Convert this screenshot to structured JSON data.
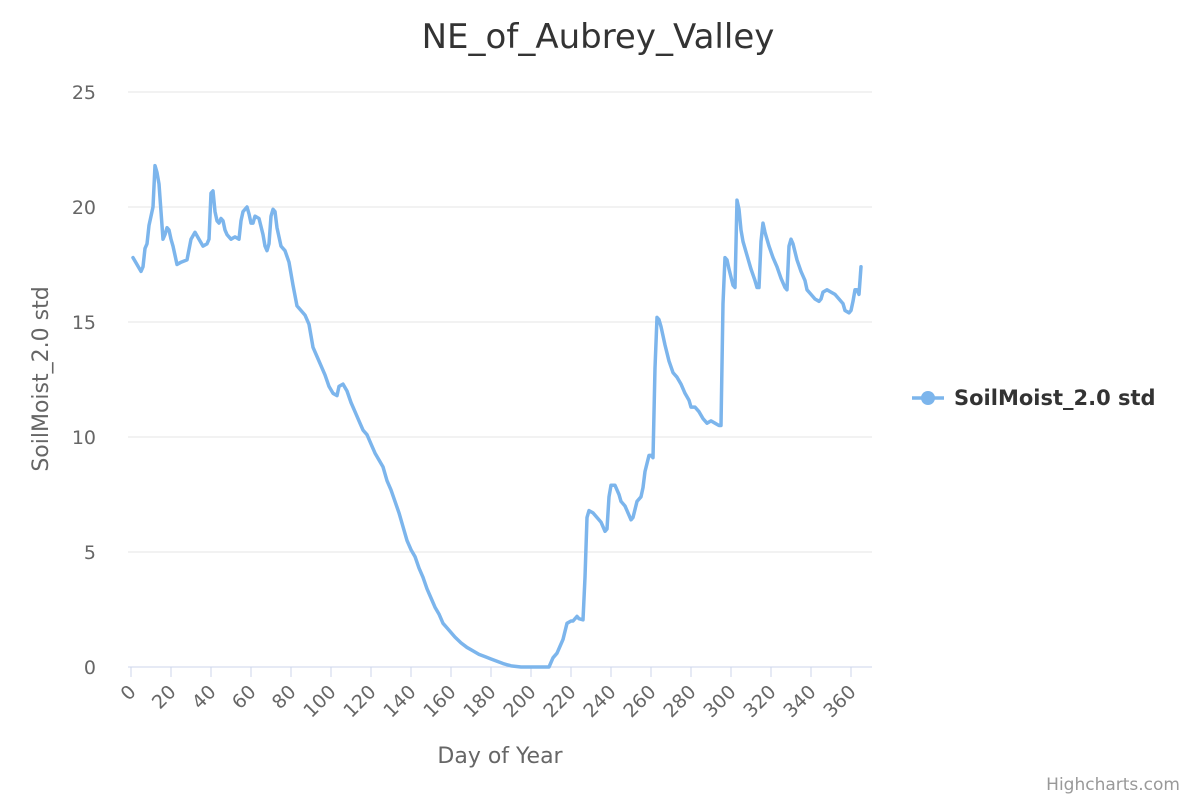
{
  "chart_data": {
    "type": "line",
    "title": "NE_of_Aubrey_Valley",
    "xlabel": "Day of Year",
    "ylabel": "SoilMoist_2.0 std",
    "xlim": [
      0,
      365
    ],
    "ylim": [
      0,
      25
    ],
    "x_ticks": [
      "0",
      "20",
      "40",
      "60",
      "80",
      "100",
      "120",
      "140",
      "160",
      "180",
      "200",
      "220",
      "240",
      "260",
      "280",
      "300",
      "320",
      "340",
      "360"
    ],
    "y_ticks": [
      "0",
      "5",
      "10",
      "15",
      "20",
      "25"
    ],
    "grid": true,
    "legend_position": "right",
    "credits": "Highcharts.com",
    "color": "#7cb5ec",
    "series": [
      {
        "name": "SoilMoist_2.0 std",
        "points": [
          [
            1,
            17.8
          ],
          [
            3,
            17.5
          ],
          [
            5,
            17.2
          ],
          [
            6,
            17.4
          ],
          [
            7,
            18.2
          ],
          [
            8,
            18.4
          ],
          [
            9,
            19.2
          ],
          [
            10,
            19.6
          ],
          [
            11,
            20.0
          ],
          [
            12,
            21.8
          ],
          [
            13,
            21.5
          ],
          [
            14,
            21.0
          ],
          [
            15,
            19.8
          ],
          [
            16,
            18.6
          ],
          [
            17,
            18.8
          ],
          [
            18,
            19.1
          ],
          [
            19,
            19.0
          ],
          [
            20,
            18.6
          ],
          [
            21,
            18.3
          ],
          [
            22,
            17.9
          ],
          [
            23,
            17.5
          ],
          [
            25,
            17.6
          ],
          [
            28,
            17.7
          ],
          [
            30,
            18.6
          ],
          [
            32,
            18.9
          ],
          [
            34,
            18.6
          ],
          [
            36,
            18.3
          ],
          [
            38,
            18.4
          ],
          [
            39,
            18.6
          ],
          [
            40,
            20.6
          ],
          [
            41,
            20.7
          ],
          [
            42,
            19.8
          ],
          [
            43,
            19.4
          ],
          [
            44,
            19.3
          ],
          [
            45,
            19.5
          ],
          [
            46,
            19.4
          ],
          [
            47,
            19.0
          ],
          [
            48,
            18.8
          ],
          [
            50,
            18.6
          ],
          [
            52,
            18.7
          ],
          [
            54,
            18.6
          ],
          [
            55,
            19.4
          ],
          [
            56,
            19.8
          ],
          [
            58,
            20.0
          ],
          [
            59,
            19.7
          ],
          [
            60,
            19.3
          ],
          [
            61,
            19.3
          ],
          [
            62,
            19.6
          ],
          [
            64,
            19.5
          ],
          [
            66,
            18.8
          ],
          [
            67,
            18.3
          ],
          [
            68,
            18.1
          ],
          [
            69,
            18.4
          ],
          [
            70,
            19.6
          ],
          [
            71,
            19.9
          ],
          [
            72,
            19.8
          ],
          [
            73,
            19.1
          ],
          [
            75,
            18.3
          ],
          [
            77,
            18.1
          ],
          [
            79,
            17.6
          ],
          [
            81,
            16.6
          ],
          [
            83,
            15.7
          ],
          [
            85,
            15.5
          ],
          [
            87,
            15.3
          ],
          [
            89,
            14.9
          ],
          [
            91,
            13.9
          ],
          [
            93,
            13.5
          ],
          [
            95,
            13.1
          ],
          [
            97,
            12.7
          ],
          [
            99,
            12.2
          ],
          [
            101,
            11.9
          ],
          [
            103,
            11.8
          ],
          [
            104,
            12.2
          ],
          [
            106,
            12.3
          ],
          [
            108,
            12.0
          ],
          [
            110,
            11.5
          ],
          [
            112,
            11.1
          ],
          [
            114,
            10.7
          ],
          [
            116,
            10.3
          ],
          [
            118,
            10.1
          ],
          [
            120,
            9.7
          ],
          [
            122,
            9.3
          ],
          [
            124,
            9.0
          ],
          [
            126,
            8.7
          ],
          [
            128,
            8.1
          ],
          [
            130,
            7.7
          ],
          [
            132,
            7.2
          ],
          [
            134,
            6.7
          ],
          [
            136,
            6.1
          ],
          [
            138,
            5.5
          ],
          [
            140,
            5.1
          ],
          [
            142,
            4.8
          ],
          [
            144,
            4.3
          ],
          [
            146,
            3.9
          ],
          [
            148,
            3.4
          ],
          [
            150,
            3.0
          ],
          [
            152,
            2.6
          ],
          [
            154,
            2.3
          ],
          [
            156,
            1.9
          ],
          [
            158,
            1.7
          ],
          [
            160,
            1.5
          ],
          [
            162,
            1.3
          ],
          [
            165,
            1.05
          ],
          [
            168,
            0.85
          ],
          [
            171,
            0.7
          ],
          [
            174,
            0.55
          ],
          [
            177,
            0.45
          ],
          [
            180,
            0.35
          ],
          [
            183,
            0.25
          ],
          [
            186,
            0.15
          ],
          [
            190,
            0.05
          ],
          [
            195,
            0.0
          ],
          [
            200,
            0.0
          ],
          [
            205,
            0.0
          ],
          [
            209,
            0.0
          ],
          [
            211,
            0.4
          ],
          [
            213,
            0.6
          ],
          [
            215,
            1.0
          ],
          [
            216,
            1.2
          ],
          [
            218,
            1.9
          ],
          [
            220,
            2.0
          ],
          [
            221,
            2.0
          ],
          [
            223,
            2.2
          ],
          [
            224,
            2.1
          ],
          [
            226,
            2.05
          ],
          [
            227,
            3.9
          ],
          [
            228,
            6.5
          ],
          [
            229,
            6.8
          ],
          [
            231,
            6.7
          ],
          [
            233,
            6.5
          ],
          [
            235,
            6.3
          ],
          [
            237,
            5.9
          ],
          [
            238,
            6.0
          ],
          [
            239,
            7.4
          ],
          [
            240,
            7.9
          ],
          [
            242,
            7.9
          ],
          [
            244,
            7.5
          ],
          [
            245,
            7.2
          ],
          [
            247,
            7.0
          ],
          [
            249,
            6.6
          ],
          [
            250,
            6.4
          ],
          [
            251,
            6.5
          ],
          [
            253,
            7.2
          ],
          [
            255,
            7.4
          ],
          [
            256,
            7.8
          ],
          [
            257,
            8.5
          ],
          [
            259,
            9.2
          ],
          [
            260,
            9.2
          ],
          [
            261,
            9.1
          ],
          [
            262,
            13.0
          ],
          [
            263,
            15.2
          ],
          [
            264,
            15.1
          ],
          [
            265,
            14.8
          ],
          [
            267,
            14.0
          ],
          [
            269,
            13.3
          ],
          [
            271,
            12.8
          ],
          [
            273,
            12.6
          ],
          [
            275,
            12.3
          ],
          [
            277,
            11.9
          ],
          [
            279,
            11.6
          ],
          [
            280,
            11.3
          ],
          [
            282,
            11.3
          ],
          [
            284,
            11.1
          ],
          [
            286,
            10.8
          ],
          [
            288,
            10.6
          ],
          [
            290,
            10.7
          ],
          [
            292,
            10.6
          ],
          [
            294,
            10.5
          ],
          [
            295,
            10.5
          ],
          [
            296,
            15.8
          ],
          [
            297,
            17.8
          ],
          [
            298,
            17.7
          ],
          [
            299,
            17.3
          ],
          [
            301,
            16.6
          ],
          [
            302,
            16.5
          ],
          [
            303,
            20.3
          ],
          [
            304,
            19.9
          ],
          [
            305,
            19.0
          ],
          [
            306,
            18.5
          ],
          [
            308,
            17.9
          ],
          [
            310,
            17.3
          ],
          [
            312,
            16.8
          ],
          [
            313,
            16.5
          ],
          [
            314,
            16.5
          ],
          [
            315,
            18.5
          ],
          [
            316,
            19.3
          ],
          [
            317,
            18.9
          ],
          [
            319,
            18.3
          ],
          [
            321,
            17.8
          ],
          [
            323,
            17.4
          ],
          [
            325,
            16.9
          ],
          [
            327,
            16.5
          ],
          [
            328,
            16.4
          ],
          [
            329,
            18.3
          ],
          [
            330,
            18.6
          ],
          [
            331,
            18.4
          ],
          [
            333,
            17.7
          ],
          [
            335,
            17.2
          ],
          [
            337,
            16.8
          ],
          [
            338,
            16.4
          ],
          [
            340,
            16.2
          ],
          [
            342,
            16.0
          ],
          [
            344,
            15.9
          ],
          [
            345,
            16.0
          ],
          [
            346,
            16.3
          ],
          [
            348,
            16.4
          ],
          [
            350,
            16.3
          ],
          [
            352,
            16.2
          ],
          [
            354,
            16.0
          ],
          [
            356,
            15.8
          ],
          [
            357,
            15.5
          ],
          [
            359,
            15.4
          ],
          [
            360,
            15.5
          ],
          [
            361,
            15.9
          ],
          [
            362,
            16.4
          ],
          [
            363,
            16.4
          ],
          [
            364,
            16.2
          ],
          [
            365,
            17.4
          ]
        ]
      }
    ]
  }
}
